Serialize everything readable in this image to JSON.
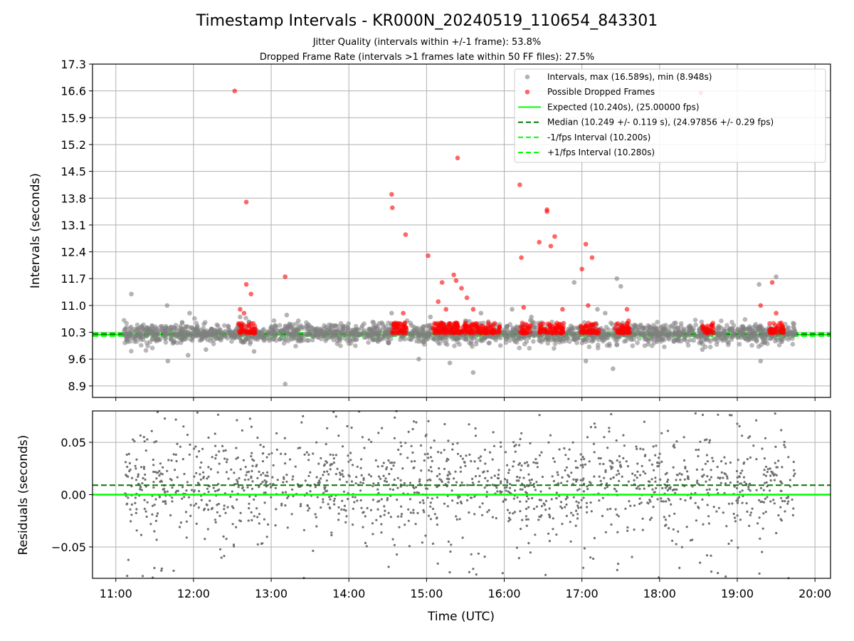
{
  "figure": {
    "title": "Timestamp Intervals - KR000N_20240519_110654_843301",
    "subtitle_1": "Jitter Quality (intervals within +/-1 frame): 53.8%",
    "subtitle_2": "Dropped Frame Rate (intervals >1 frames late within 50 FF files): 27.5%"
  },
  "chart_data": [
    {
      "type": "scatter",
      "panel": "intervals",
      "ylabel": "Intervals (seconds)",
      "xlabel": "",
      "x_unit": "hours UTC",
      "xlim": [
        10.7,
        20.2
      ],
      "ylim": [
        8.6,
        17.3
      ],
      "yticks": [
        "8.9",
        "9.6",
        "10.3",
        "11.0",
        "11.7",
        "12.4",
        "13.1",
        "13.8",
        "14.5",
        "15.2",
        "15.9",
        "16.6",
        "17.3"
      ],
      "xticks": [
        "11:00",
        "12:00",
        "13:00",
        "14:00",
        "15:00",
        "16:00",
        "17:00",
        "18:00",
        "19:00",
        "20:00"
      ],
      "grid": true,
      "legend_position": "top-right",
      "legend": [
        {
          "label": "Intervals, max (16.589s), min (8.948s)",
          "kind": "dot",
          "color": "#808080"
        },
        {
          "label": "Possible Dropped Frames",
          "kind": "dot",
          "color": "#ff0000"
        },
        {
          "label": "Expected (10.240s), (25.00000 fps)",
          "kind": "solid",
          "color": "#00ff00"
        },
        {
          "label": "Median (10.249 +/- 0.119 s), (24.97856 +/- 0.29 fps)",
          "kind": "dashed",
          "color": "#007a00"
        },
        {
          "label": "-1/fps Interval (10.200s)",
          "kind": "dashed",
          "color": "#00ff00"
        },
        {
          "label": "+1/fps Interval (10.280s)",
          "kind": "dashed",
          "color": "#00ff00"
        }
      ],
      "reference_lines": {
        "expected": 10.24,
        "median": 10.249,
        "minus_one_frame": 10.2,
        "plus_one_frame": 10.28
      },
      "series": [
        {
          "name": "Intervals, max (16.589s), min (8.948s)",
          "color": "#808080",
          "x": [
            11.2,
            11.66,
            11.95,
            12.6,
            13.18,
            13.2,
            13.35,
            14.55,
            14.75,
            15.05,
            15.5,
            15.7,
            16.1,
            16.35,
            16.9,
            17.2,
            17.45,
            17.5,
            17.3,
            19.28,
            19.5,
            11.67,
            11.93,
            12.16,
            12.78,
            14.9,
            15.3,
            15.6,
            17.05,
            17.4,
            18.55,
            19.3
          ],
          "y": [
            11.3,
            11.0,
            10.8,
            10.7,
            8.95,
            10.75,
            10.6,
            10.8,
            10.6,
            10.7,
            10.6,
            10.8,
            10.9,
            10.7,
            11.6,
            10.9,
            11.7,
            11.5,
            10.8,
            11.55,
            11.75,
            9.55,
            9.7,
            9.85,
            9.8,
            9.6,
            9.5,
            9.25,
            9.55,
            9.35,
            9.85,
            9.55
          ],
          "dense_band": {
            "x_range": [
              11.1,
              19.75
            ],
            "y_range": [
              9.7,
              10.75
            ],
            "center": 10.26,
            "approx_points": 2000
          }
        },
        {
          "name": "Possible Dropped Frames",
          "color": "#ff0000",
          "x": [
            12.53,
            12.68,
            12.68,
            12.74,
            13.18,
            14.55,
            14.56,
            14.73,
            15.02,
            15.4,
            15.2,
            15.35,
            15.38,
            15.45,
            15.52,
            16.2,
            16.22,
            16.45,
            16.55,
            16.55,
            16.6,
            16.65,
            17.0,
            17.08,
            17.13,
            17.6,
            18.53,
            19.45,
            19.3,
            12.6,
            12.65,
            14.7,
            15.15,
            15.25,
            15.6,
            16.25,
            16.75,
            17.05,
            17.58,
            19.5
          ],
          "y": [
            16.6,
            13.7,
            11.55,
            11.3,
            11.75,
            13.9,
            13.55,
            12.85,
            12.3,
            14.85,
            11.6,
            11.8,
            11.65,
            11.45,
            11.2,
            14.15,
            12.25,
            12.65,
            13.45,
            13.5,
            12.55,
            12.8,
            11.95,
            11.0,
            12.25,
            10.6,
            16.55,
            11.6,
            11.0,
            10.9,
            10.8,
            10.8,
            11.1,
            10.9,
            10.9,
            10.95,
            10.9,
            12.6,
            10.9,
            10.8
          ],
          "dense_band": {
            "x_ranges": [
              [
                12.58,
                12.8
              ],
              [
                14.55,
                14.75
              ],
              [
                15.08,
                15.95
              ],
              [
                16.2,
                16.35
              ],
              [
                16.45,
                16.78
              ],
              [
                16.98,
                17.22
              ],
              [
                17.42,
                17.62
              ],
              [
                18.55,
                18.7
              ],
              [
                19.4,
                19.6
              ]
            ],
            "y_range": [
              10.28,
              10.55
            ]
          }
        }
      ]
    },
    {
      "type": "scatter",
      "panel": "residuals",
      "ylabel": "Residuals (seconds)",
      "xlabel": "Time (UTC)",
      "xlim": [
        10.7,
        20.2
      ],
      "ylim": [
        -0.08,
        0.08
      ],
      "yticks": [
        "−0.05",
        "0.00",
        "0.05"
      ],
      "xticks": [
        "11:00",
        "12:00",
        "13:00",
        "14:00",
        "15:00",
        "16:00",
        "17:00",
        "18:00",
        "19:00",
        "20:00"
      ],
      "grid": true,
      "reference_lines": {
        "zero": 0.0,
        "median_offset": 0.009
      },
      "series": [
        {
          "name": "Residuals",
          "color": "#707070",
          "dense_band": {
            "x_range": [
              11.12,
              19.75
            ],
            "y_range": [
              -0.08,
              0.08
            ],
            "core_sd": 0.02,
            "approx_points": 1500
          }
        }
      ]
    }
  ]
}
